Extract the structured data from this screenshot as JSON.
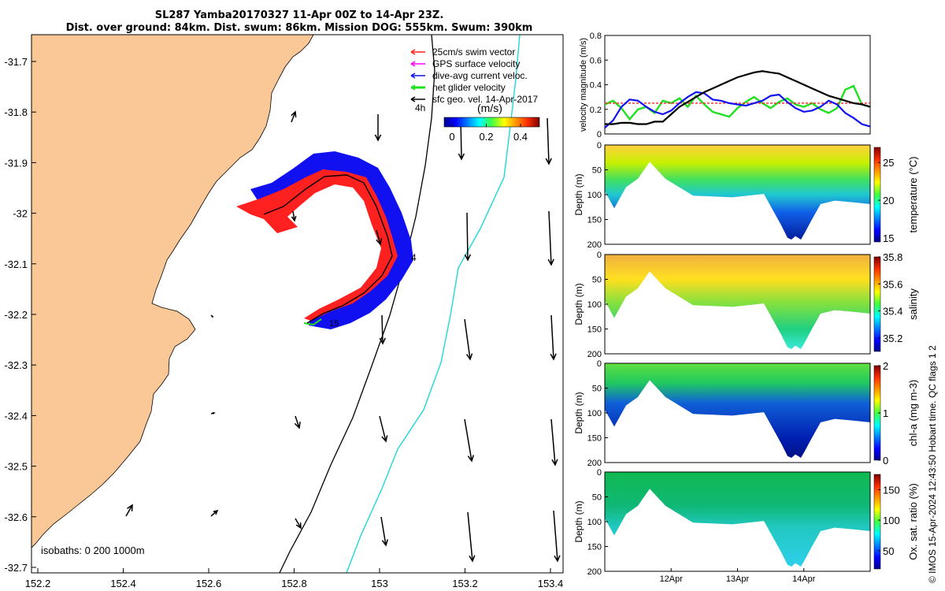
{
  "header": {
    "title": "SL287 Yamba20170327 11-Apr 00Z to 14-Apr 23Z.",
    "subtitle": "Dist. over ground: 84km. Dist. swum: 86km. Mission DOG: 555km. Swum: 390km"
  },
  "credit": "© IMOS 15-Apr-2024 12:43:50 Hobart time. QC flags 1  2",
  "colors": {
    "land": "#fac896",
    "swim_vector": "#ff2020",
    "gps_velocity": "#ff00ff",
    "current": "#1010f0",
    "net_velocity": "#20e020",
    "sfc_geo": "#000000",
    "isobath_1000": "#20d8d8"
  },
  "map": {
    "legend": [
      {
        "label": "25cm/s swim vector",
        "color": "#ff2020"
      },
      {
        "label": "GPS surface velocity",
        "color": "#ff00ff"
      },
      {
        "label": "dive-avg current veloc.",
        "color": "#1010f0"
      },
      {
        "label": "net glider velocity",
        "color": "#20e020"
      },
      {
        "label": "sfc geo. vel. 14-Apr-2017",
        "color": "#000000"
      }
    ],
    "colorbar_label": "(m/s)",
    "colorbar_ticks": [
      "0",
      "0.2",
      "0.4"
    ],
    "time_mark_label": "4h",
    "track_label_end": "4",
    "track_label_start": "15",
    "isobaths_label": "isobaths: 0   200  1000m",
    "x_ticks": [
      "152.2",
      "152.4",
      "152.6",
      "152.8",
      "153",
      "153.2",
      "153.4"
    ],
    "y_ticks": [
      "-31.7",
      "-31.8",
      "-31.9",
      "-32",
      "-32.1",
      "-32.2",
      "-32.3",
      "-32.4",
      "-32.5",
      "-32.6",
      "-32.7"
    ]
  },
  "chart_data": [
    {
      "type": "line",
      "ylabel": "velocity magnitude (m/s)",
      "ylim": [
        0,
        0.8
      ],
      "y_ticks": [
        "0",
        "0.2",
        "0.4",
        "0.6",
        "0.8"
      ],
      "x": [
        0,
        0.125,
        0.25,
        0.375,
        0.5,
        0.625,
        0.75,
        0.875,
        1.0,
        1.125,
        1.25,
        1.375,
        1.5,
        1.625,
        1.75,
        1.875,
        2.0,
        2.125,
        2.25,
        2.375,
        2.5,
        2.625,
        2.75,
        2.875,
        3.0,
        3.125,
        3.25,
        3.375,
        3.5,
        3.625,
        3.75,
        3.875,
        4.0
      ],
      "series": [
        {
          "color": "#20e020",
          "values": [
            0.24,
            0.27,
            0.21,
            0.12,
            0.2,
            0.22,
            0.17,
            0.27,
            0.25,
            0.29,
            0.22,
            0.31,
            0.24,
            0.18,
            0.16,
            0.14,
            0.21,
            0.26,
            0.3,
            0.25,
            0.21,
            0.26,
            0.29,
            0.24,
            0.22,
            0.25,
            0.2,
            0.17,
            0.21,
            0.36,
            0.39,
            0.24,
            0.22
          ]
        },
        {
          "color": "#ff2020",
          "values": [
            0.25,
            0.25,
            0.25,
            0.25,
            0.25,
            0.25,
            0.25,
            0.25,
            0.25,
            0.25,
            0.25,
            0.25,
            0.25,
            0.25,
            0.25,
            0.25,
            0.25,
            0.25,
            0.25,
            0.25,
            0.25,
            0.25,
            0.25,
            0.25,
            0.25,
            0.25,
            0.25,
            0.25,
            0.25,
            0.25,
            0.25,
            0.25,
            0.25
          ]
        },
        {
          "color": "#1010f0",
          "values": [
            0.05,
            0.11,
            0.22,
            0.28,
            0.27,
            0.22,
            0.18,
            0.16,
            0.19,
            0.25,
            0.3,
            0.34,
            0.33,
            0.28,
            0.27,
            0.25,
            0.24,
            0.23,
            0.25,
            0.27,
            0.31,
            0.32,
            0.26,
            0.21,
            0.18,
            0.19,
            0.22,
            0.27,
            0.24,
            0.17,
            0.13,
            0.08,
            0.06
          ]
        },
        {
          "color": "#000000",
          "values": [
            0.08,
            0.08,
            0.09,
            0.09,
            0.08,
            0.08,
            0.1,
            0.1,
            0.16,
            0.22,
            0.26,
            0.3,
            0.34,
            0.37,
            0.4,
            0.43,
            0.46,
            0.48,
            0.5,
            0.51,
            0.5,
            0.49,
            0.46,
            0.43,
            0.4,
            0.37,
            0.34,
            0.31,
            0.29,
            0.27,
            0.25,
            0.24,
            0.22
          ]
        }
      ]
    },
    {
      "type": "heatmap",
      "ylabel": "Depth (m)",
      "cbar_label": "temperature (°C)",
      "ylim": [
        0,
        200
      ],
      "y_ticks": [
        "0",
        "50",
        "100",
        "150",
        "200"
      ],
      "cbar_ticks": [
        "15",
        "20",
        "25"
      ],
      "cbar_range": [
        14.5,
        27
      ]
    },
    {
      "type": "heatmap",
      "ylabel": "Depth (m)",
      "cbar_label": "salinity",
      "ylim": [
        0,
        200
      ],
      "y_ticks": [
        "0",
        "50",
        "100",
        "150",
        "200"
      ],
      "cbar_ticks": [
        "35.2",
        "35.4",
        "35.6",
        "35.8"
      ],
      "cbar_range": [
        35.1,
        35.8
      ]
    },
    {
      "type": "heatmap",
      "ylabel": "Depth (m)",
      "cbar_label": "chl-a (mg m-3)",
      "ylim": [
        0,
        200
      ],
      "y_ticks": [
        "0",
        "50",
        "100",
        "150",
        "200"
      ],
      "cbar_ticks": [
        "0",
        "1",
        "2"
      ],
      "cbar_range": [
        0,
        2
      ]
    },
    {
      "type": "heatmap",
      "ylabel": "Depth (m)",
      "cbar_label": "Ox. sat. ratio (%)",
      "ylim": [
        0,
        200
      ],
      "y_ticks": [
        "0",
        "50",
        "100",
        "150",
        "200"
      ],
      "cbar_ticks": [
        "50",
        "100",
        "150"
      ],
      "cbar_range": [
        20,
        175
      ],
      "x_ticks": [
        "12Apr",
        "13Apr",
        "14Apr"
      ]
    }
  ]
}
